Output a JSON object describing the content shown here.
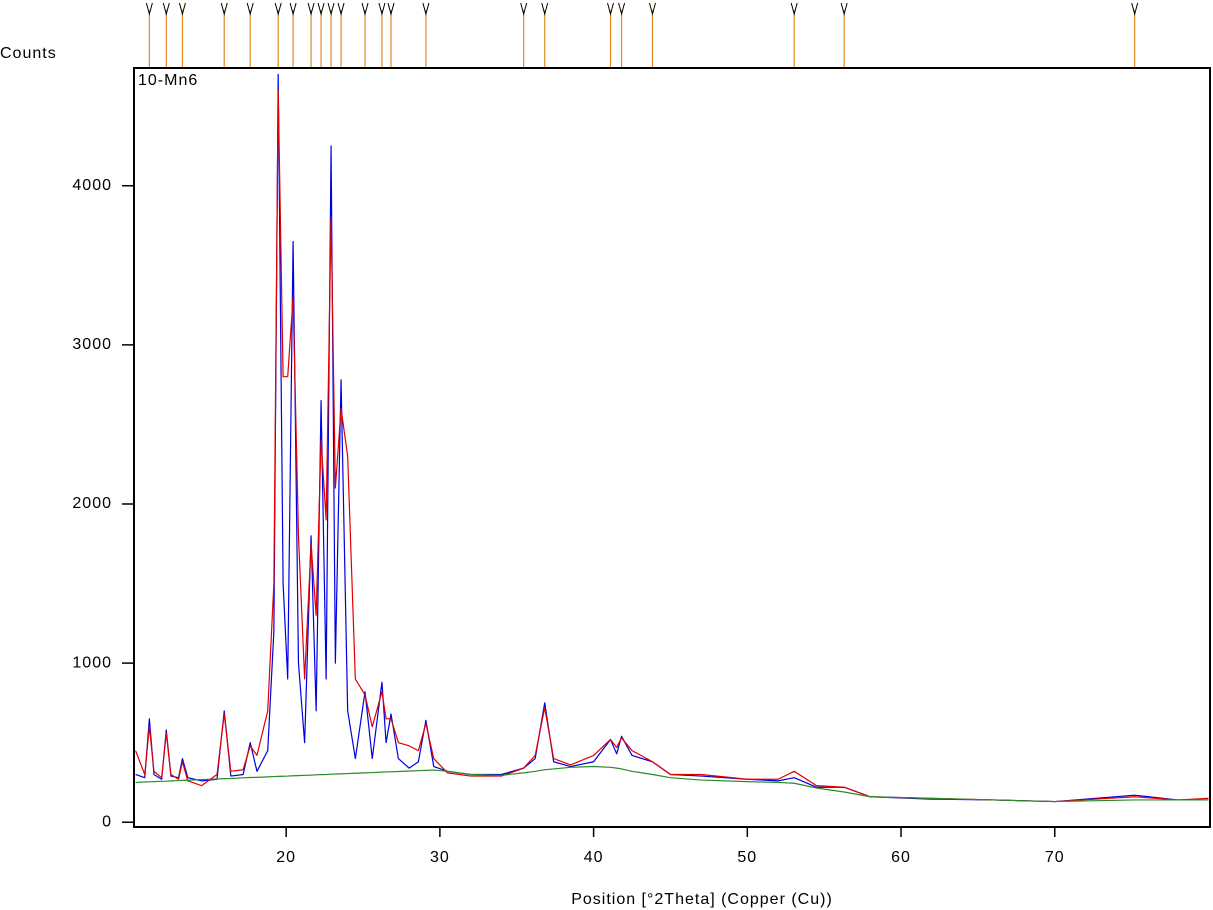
{
  "chart_data": {
    "type": "line",
    "title": "10-Mn6",
    "y_label": "Counts",
    "x_label": "Position [°2Theta] (Copper (Cu))",
    "xlim": [
      10.1,
      80.1
    ],
    "ylim": [
      -30,
      4740
    ],
    "xticks": [
      20,
      30,
      40,
      50,
      60,
      70
    ],
    "yticks": [
      0,
      1000,
      2000,
      3000,
      4000
    ],
    "x": [
      10.2,
      10.8,
      11.1,
      11.4,
      11.9,
      12.2,
      12.5,
      13.0,
      13.25,
      13.6,
      14.5,
      15.5,
      15.97,
      16.4,
      17.2,
      17.66,
      18.1,
      18.8,
      19.2,
      19.48,
      19.8,
      20.1,
      20.45,
      20.8,
      21.2,
      21.62,
      21.95,
      22.27,
      22.6,
      22.92,
      23.2,
      23.57,
      24.0,
      24.5,
      25.13,
      25.6,
      26.23,
      26.5,
      26.82,
      27.3,
      28.0,
      28.6,
      29.09,
      29.6,
      30.5,
      32.0,
      34.0,
      35.45,
      36.2,
      36.82,
      37.4,
      38.5,
      40.0,
      41.1,
      41.5,
      41.82,
      42.5,
      43.83,
      45.0,
      47.0,
      50.0,
      52.0,
      53.05,
      54.5,
      56.3,
      58.0,
      62.0,
      66.0,
      70.0,
      75.2,
      78.0,
      80.0
    ],
    "series": [
      {
        "color": "#0000e0",
        "values": [
          300,
          280,
          650,
          300,
          270,
          580,
          290,
          280,
          400,
          280,
          260,
          270,
          700,
          290,
          300,
          500,
          320,
          450,
          1200,
          4700,
          1500,
          900,
          3650,
          1000,
          500,
          1800,
          700,
          2650,
          900,
          4250,
          1000,
          2780,
          700,
          400,
          820,
          400,
          880,
          500,
          680,
          400,
          340,
          380,
          640,
          350,
          320,
          300,
          300,
          340,
          400,
          750,
          380,
          350,
          380,
          520,
          430,
          540,
          420,
          380,
          300,
          290,
          270,
          260,
          280,
          220,
          220,
          160,
          145,
          140,
          130,
          170,
          140,
          140
        ]
      },
      {
        "color": "#e00000",
        "values": [
          450,
          300,
          600,
          320,
          280,
          560,
          300,
          270,
          380,
          260,
          230,
          300,
          680,
          320,
          330,
          480,
          420,
          700,
          1500,
          4600,
          2800,
          2800,
          3300,
          1800,
          900,
          1750,
          1300,
          2400,
          1900,
          3800,
          2100,
          2600,
          2300,
          900,
          800,
          600,
          820,
          650,
          650,
          500,
          480,
          450,
          620,
          400,
          310,
          290,
          290,
          340,
          420,
          720,
          400,
          360,
          420,
          520,
          470,
          530,
          450,
          380,
          300,
          300,
          270,
          270,
          320,
          230,
          220,
          160,
          150,
          140,
          130,
          160,
          140,
          150
        ]
      },
      {
        "color": "#2a8a2a",
        "values": [
          250,
          253,
          254,
          255,
          257,
          258,
          260,
          262,
          263,
          264,
          268,
          272,
          274,
          275,
          279,
          281,
          282,
          285,
          287,
          288,
          289,
          290,
          292,
          293,
          295,
          296,
          298,
          299,
          300,
          302,
          303,
          304,
          306,
          308,
          310,
          312,
          315,
          316,
          317,
          319,
          322,
          324,
          326,
          328,
          320,
          300,
          295,
          310,
          320,
          330,
          335,
          345,
          350,
          345,
          340,
          335,
          320,
          300,
          280,
          265,
          255,
          250,
          245,
          215,
          190,
          160,
          150,
          140,
          130,
          140,
          140,
          140
        ]
      }
    ],
    "reference_peaks": [
      11.1,
      12.2,
      13.25,
      15.97,
      17.66,
      19.48,
      20.45,
      21.62,
      22.27,
      22.92,
      23.57,
      25.13,
      26.23,
      26.82,
      29.09,
      35.45,
      36.82,
      41.1,
      41.82,
      43.83,
      53.05,
      56.3,
      75.2
    ],
    "reference_color": "#e08a20"
  }
}
